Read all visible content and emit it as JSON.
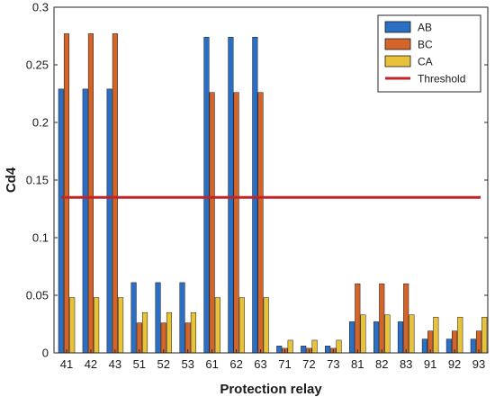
{
  "chart_data": {
    "type": "bar",
    "title": "",
    "xlabel": "Protection relay",
    "ylabel": "Cd4",
    "ylim": [
      0,
      0.3
    ],
    "yticks": [
      0,
      0.05,
      0.1,
      0.15,
      0.2,
      0.25,
      0.3
    ],
    "ytick_labels": [
      "0",
      "0.05",
      "0.1",
      "0.15",
      "0.2",
      "0.25",
      "0.3"
    ],
    "categories": [
      "41",
      "42",
      "43",
      "51",
      "52",
      "53",
      "61",
      "62",
      "63",
      "71",
      "72",
      "73",
      "81",
      "82",
      "83",
      "91",
      "92",
      "93"
    ],
    "series": [
      {
        "name": "AB",
        "color": "#2b6fc4",
        "values": [
          0.229,
          0.229,
          0.229,
          0.061,
          0.061,
          0.061,
          0.274,
          0.274,
          0.274,
          0.006,
          0.006,
          0.006,
          0.027,
          0.027,
          0.027,
          0.012,
          0.012,
          0.012
        ]
      },
      {
        "name": "BC",
        "color": "#d4652a",
        "values": [
          0.277,
          0.277,
          0.277,
          0.026,
          0.026,
          0.026,
          0.226,
          0.226,
          0.226,
          0.004,
          0.004,
          0.004,
          0.06,
          0.06,
          0.06,
          0.019,
          0.019,
          0.019
        ]
      },
      {
        "name": "CA",
        "color": "#e8c33a",
        "values": [
          0.048,
          0.048,
          0.048,
          0.035,
          0.035,
          0.035,
          0.048,
          0.048,
          0.048,
          0.011,
          0.011,
          0.011,
          0.033,
          0.033,
          0.033,
          0.031,
          0.031,
          0.031
        ]
      }
    ],
    "threshold": {
      "name": "Threshold",
      "value": 0.135,
      "color": "#c0252a"
    },
    "legend_position": "top-right",
    "grid": false
  }
}
